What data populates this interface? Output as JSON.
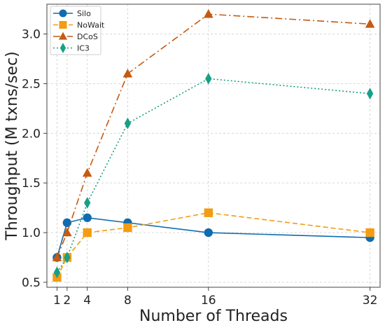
{
  "chart_data": {
    "type": "line",
    "title": "",
    "xlabel": "Number of Threads",
    "ylabel": "Throughput (M txns/sec)",
    "xlim": [
      0,
      33
    ],
    "ylim": [
      0.45,
      3.3
    ],
    "x_ticks": [
      1,
      2,
      4,
      8,
      16,
      32
    ],
    "y_ticks": [
      0.5,
      1.0,
      1.5,
      2.0,
      2.5,
      3.0
    ],
    "x_tick_labels": [
      "1",
      "2",
      "4",
      "8",
      "16",
      "32"
    ],
    "y_tick_labels": [
      "0.5",
      "1.0",
      "1.5",
      "2.0",
      "2.5",
      "3.0"
    ],
    "grid": true,
    "legend_position": "top-left",
    "x": [
      1,
      2,
      4,
      8,
      16,
      32
    ],
    "series": [
      {
        "name": "Silo",
        "values": [
          0.75,
          1.1,
          1.15,
          1.1,
          1.0,
          0.95
        ],
        "color": "#0f6cb0",
        "marker": "circle",
        "line_style": "solid"
      },
      {
        "name": "NoWait",
        "values": [
          0.55,
          0.75,
          1.0,
          1.05,
          1.2,
          1.0
        ],
        "color": "#f39c12",
        "marker": "square",
        "line_style": "dashed"
      },
      {
        "name": "DCoS",
        "values": [
          0.75,
          1.0,
          1.6,
          2.6,
          3.2,
          3.1
        ],
        "color": "#c55a11",
        "marker": "triangle",
        "line_style": "dashdot"
      },
      {
        "name": "IC3",
        "values": [
          0.6,
          0.75,
          1.3,
          2.1,
          2.55,
          2.4
        ],
        "color": "#16a085",
        "marker": "diamond",
        "line_style": "dotted"
      }
    ]
  }
}
